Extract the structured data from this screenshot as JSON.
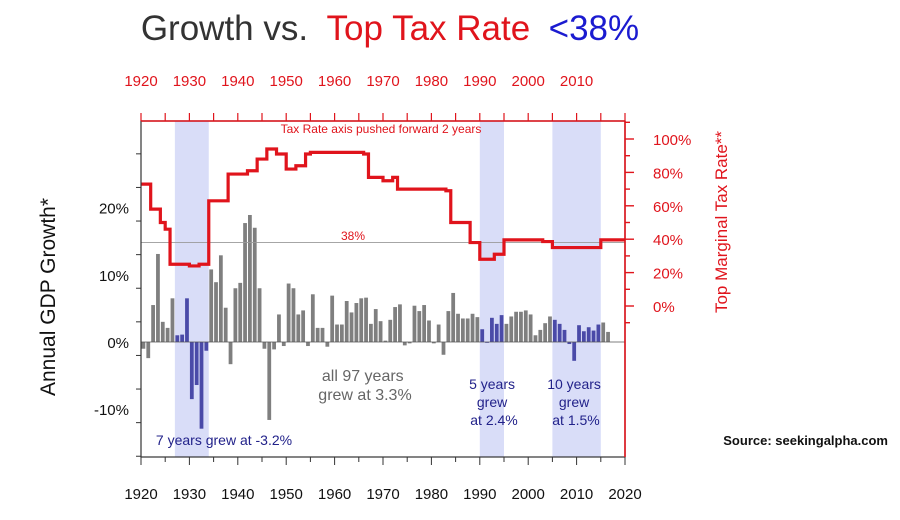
{
  "colors": {
    "tax_red": "#e0141c",
    "title_dark": "#333333",
    "title_blue": "#1b1bd0",
    "bar_gray": "#7f7f7f",
    "bar_blue": "#4a4aa8",
    "shade": "#d9ddf8",
    "annotation_blue": "#22228a",
    "annotation_gray": "#666666"
  },
  "title": {
    "part1": "Growth  vs.",
    "part2": "Top Tax Rate",
    "part3": "<38%"
  },
  "source": "Source: seekingalpha.com",
  "annotations": {
    "pushed": "Tax Rate axis pushed forward 2 years",
    "threshold": "38%",
    "all_line1": "all 97 years",
    "all_line2": "grew at 3.3%",
    "p1": "7 years grew at -3.2%",
    "p2_line1": "5 years",
    "p2_line2": "grew",
    "p2_line3": "at 2.4%",
    "p3_line1": "10 years",
    "p3_line2": "grew",
    "p3_line3": "at 1.5%"
  },
  "chart_data": {
    "type": "bar+line",
    "xlabel": "",
    "ylabel_left": "Annual GDP Growth*",
    "ylabel_right": "Top Marginal Tax Rate**",
    "x_range": [
      1920,
      2020
    ],
    "x_ticks_bottom": [
      1920,
      1930,
      1940,
      1950,
      1960,
      1970,
      1980,
      1990,
      2000,
      2010,
      2020
    ],
    "x_ticks_top": [
      1920,
      1930,
      1940,
      1950,
      1960,
      1970,
      1980,
      1990,
      2000,
      2010
    ],
    "left_axis": {
      "range": [
        -17,
        33
      ],
      "ticks": [
        -10,
        0,
        10,
        20
      ],
      "tick_labels": [
        "-10%",
        "0%",
        "10%",
        "20%"
      ]
    },
    "right_axis": {
      "range": [
        -20,
        110
      ],
      "ticks": [
        0,
        20,
        40,
        60,
        80,
        100
      ],
      "tick_labels": [
        "0%",
        "20%",
        "40%",
        "60%",
        "80%",
        "100%"
      ]
    },
    "threshold_rate": 38,
    "shaded_periods": [
      {
        "start": 1927,
        "end": 1934,
        "years": 7,
        "avg_growth": -3.2
      },
      {
        "start": 1990,
        "end": 1995,
        "years": 5,
        "avg_growth": 2.4
      },
      {
        "start": 2005,
        "end": 2015,
        "years": 10,
        "avg_growth": 1.5
      }
    ],
    "overall": {
      "years": 97,
      "avg_growth": 3.3
    },
    "gdp_growth": {
      "series_name": "Annual GDP Growth",
      "years": [
        1920,
        1921,
        1922,
        1923,
        1924,
        1925,
        1926,
        1927,
        1928,
        1929,
        1930,
        1931,
        1932,
        1933,
        1934,
        1935,
        1936,
        1937,
        1938,
        1939,
        1940,
        1941,
        1942,
        1943,
        1944,
        1945,
        1946,
        1947,
        1948,
        1949,
        1950,
        1951,
        1952,
        1953,
        1954,
        1955,
        1956,
        1957,
        1958,
        1959,
        1960,
        1961,
        1962,
        1963,
        1964,
        1965,
        1966,
        1967,
        1968,
        1969,
        1970,
        1971,
        1972,
        1973,
        1974,
        1975,
        1976,
        1977,
        1978,
        1979,
        1980,
        1981,
        1982,
        1983,
        1984,
        1985,
        1986,
        1987,
        1988,
        1989,
        1990,
        1991,
        1992,
        1993,
        1994,
        1995,
        1996,
        1997,
        1998,
        1999,
        2000,
        2001,
        2002,
        2003,
        2004,
        2005,
        2006,
        2007,
        2008,
        2009,
        2010,
        2011,
        2012,
        2013,
        2014,
        2015,
        2016
      ],
      "values": [
        -1.0,
        -2.4,
        5.5,
        13.1,
        3.0,
        2.1,
        6.5,
        1.0,
        1.1,
        6.5,
        -8.5,
        -6.4,
        -12.9,
        -1.3,
        10.8,
        8.9,
        12.9,
        5.1,
        -3.3,
        8.0,
        8.8,
        17.7,
        18.9,
        17.0,
        8.0,
        -1.0,
        -11.6,
        -1.1,
        4.1,
        -0.6,
        8.7,
        8.0,
        4.1,
        4.7,
        -0.6,
        7.1,
        2.1,
        2.1,
        -0.7,
        6.9,
        2.6,
        2.6,
        6.1,
        4.4,
        5.8,
        6.5,
        6.6,
        2.7,
        4.9,
        3.1,
        0.2,
        3.3,
        5.2,
        5.6,
        -0.5,
        -0.2,
        5.4,
        4.6,
        5.5,
        3.2,
        -0.2,
        2.6,
        -1.9,
        4.6,
        7.3,
        4.2,
        3.5,
        3.5,
        4.2,
        3.7,
        1.9,
        -0.1,
        3.6,
        2.7,
        4.0,
        2.7,
        3.8,
        4.5,
        4.5,
        4.7,
        4.1,
        1.0,
        1.8,
        2.8,
        3.8,
        3.3,
        2.7,
        1.8,
        -0.3,
        -2.8,
        2.5,
        1.6,
        2.2,
        1.7,
        2.6,
        2.9,
        1.5
      ]
    },
    "tax_rate": {
      "series_name": "Top Marginal Tax Rate (plotted +2 years)",
      "steps": [
        {
          "x": 1920,
          "rate": 73
        },
        {
          "x": 1922,
          "rate": 58
        },
        {
          "x": 1924,
          "rate": 50
        },
        {
          "x": 1925,
          "rate": 46
        },
        {
          "x": 1926,
          "rate": 25
        },
        {
          "x": 1930,
          "rate": 24
        },
        {
          "x": 1932,
          "rate": 25
        },
        {
          "x": 1934,
          "rate": 63
        },
        {
          "x": 1938,
          "rate": 79
        },
        {
          "x": 1942,
          "rate": 81
        },
        {
          "x": 1944,
          "rate": 88
        },
        {
          "x": 1946,
          "rate": 94
        },
        {
          "x": 1948,
          "rate": 91
        },
        {
          "x": 1950,
          "rate": 82
        },
        {
          "x": 1952,
          "rate": 84
        },
        {
          "x": 1954,
          "rate": 91
        },
        {
          "x": 1955,
          "rate": 92
        },
        {
          "x": 1966,
          "rate": 91
        },
        {
          "x": 1967,
          "rate": 77
        },
        {
          "x": 1970,
          "rate": 75
        },
        {
          "x": 1972,
          "rate": 77
        },
        {
          "x": 1973,
          "rate": 70
        },
        {
          "x": 1983,
          "rate": 69
        },
        {
          "x": 1984,
          "rate": 50
        },
        {
          "x": 1988,
          "rate": 38
        },
        {
          "x": 1990,
          "rate": 28
        },
        {
          "x": 1993,
          "rate": 31
        },
        {
          "x": 1995,
          "rate": 39.6
        },
        {
          "x": 2003,
          "rate": 38.6
        },
        {
          "x": 2005,
          "rate": 35
        },
        {
          "x": 2015,
          "rate": 39.6
        },
        {
          "x": 2020,
          "rate": 39.6
        }
      ]
    }
  }
}
